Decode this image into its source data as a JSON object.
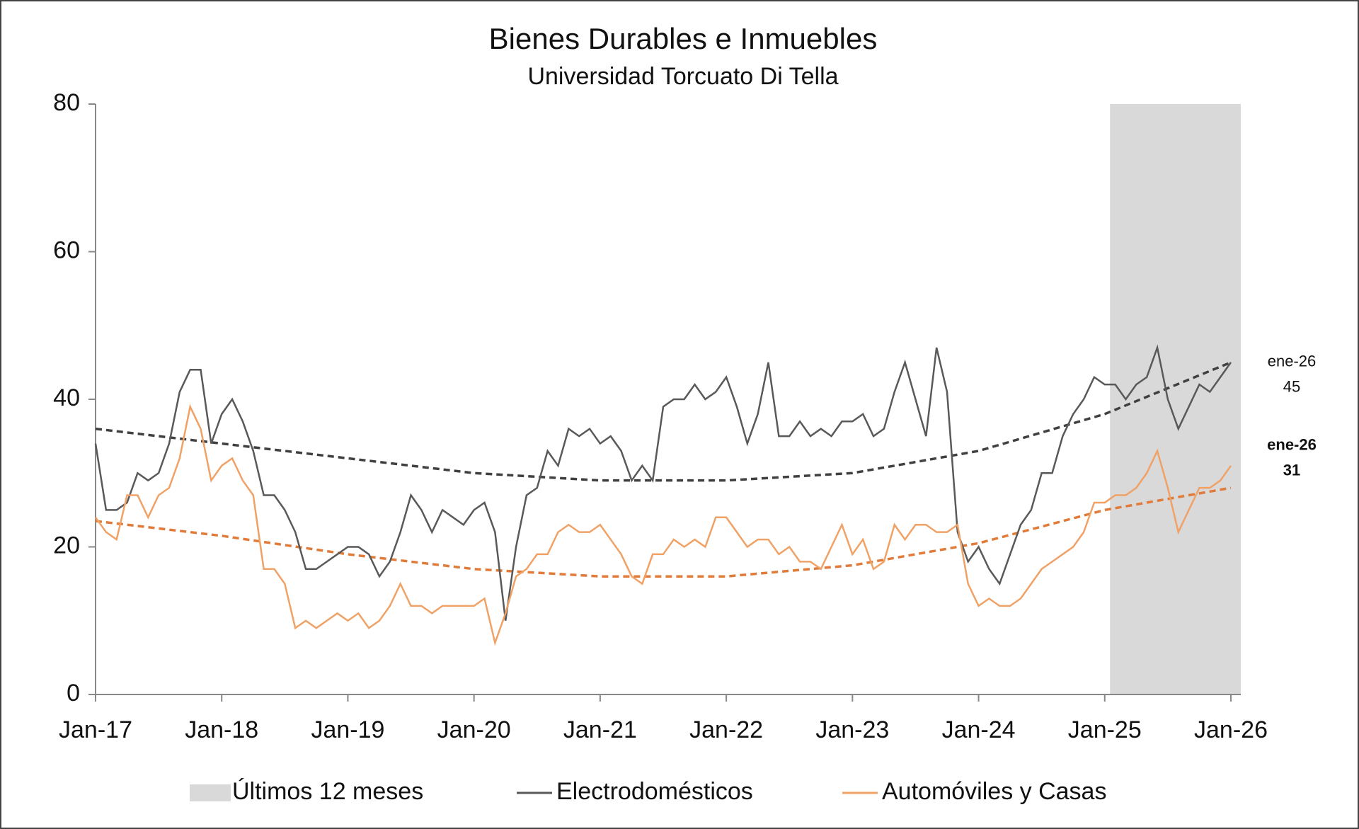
{
  "chart_data": {
    "type": "line",
    "title": "Bienes Durables e Inmuebles",
    "subtitle": "Universidad Torcuato Di Tella",
    "categories": [
      "Jan-17",
      null,
      null,
      null,
      null,
      null,
      null,
      null,
      null,
      null,
      null,
      null,
      "Jan-18",
      null,
      null,
      null,
      null,
      null,
      null,
      null,
      null,
      null,
      null,
      null,
      "Jan-19",
      null,
      null,
      null,
      null,
      null,
      null,
      null,
      null,
      null,
      null,
      null,
      "Jan-20",
      null,
      null,
      null,
      null,
      null,
      null,
      null,
      null,
      null,
      null,
      null,
      "Jan-21",
      null,
      null,
      null,
      null,
      null,
      null,
      null,
      null,
      null,
      null,
      null,
      "Jan-22",
      null,
      null,
      null,
      null,
      null,
      null,
      null,
      null,
      null,
      null,
      null,
      "Jan-23",
      null,
      null,
      null,
      null,
      null,
      null,
      null,
      null,
      null,
      null,
      null,
      "Jan-24",
      null,
      null,
      null,
      null,
      null,
      null,
      null,
      null,
      null,
      null,
      null,
      "Jan-25",
      null,
      null,
      null,
      null,
      null,
      null,
      null,
      null,
      null,
      null,
      null,
      "Jan-26"
    ],
    "series": [
      {
        "name": "Electrodomésticos",
        "color": "#595959",
        "end_label": "ene-26",
        "values": [
          34,
          25,
          25,
          26,
          30,
          29,
          30,
          34,
          41,
          44,
          44,
          34,
          38,
          40,
          37,
          33,
          27,
          27,
          25,
          22,
          17,
          17,
          18,
          19,
          20,
          20,
          19,
          16,
          18,
          22,
          27,
          25,
          22,
          25,
          24,
          23,
          25,
          26,
          22,
          10,
          20,
          27,
          28,
          33,
          31,
          36,
          35,
          36,
          34,
          35,
          33,
          29,
          31,
          29,
          39,
          40,
          40,
          42,
          40,
          41,
          43,
          39,
          34,
          38,
          45,
          35,
          35,
          37,
          35,
          36,
          35,
          37,
          37,
          38,
          35,
          36,
          41,
          45,
          40,
          35,
          47,
          41,
          22,
          18,
          20,
          17,
          15,
          19,
          23,
          25,
          30,
          30,
          35,
          38,
          40,
          43,
          42,
          42,
          40,
          42,
          43,
          47,
          40,
          36,
          39,
          42,
          41,
          43,
          45
        ],
        "trend": {
          "color": "#404040",
          "x": [
            "Jan-17",
            "Jan-18",
            "Jan-19",
            "Jan-20",
            "Jan-21",
            "Jan-22",
            "Jan-23",
            "Jan-24",
            "Jan-25",
            "Jan-26"
          ],
          "values": [
            36,
            34,
            32,
            30,
            29,
            29,
            30,
            33,
            38,
            45
          ]
        }
      },
      {
        "name": "Automóviles y Casas",
        "color": "#f0a266",
        "end_label": "ene-26",
        "values": [
          24,
          22,
          21,
          27,
          27,
          24,
          27,
          28,
          32,
          39,
          36,
          29,
          31,
          32,
          29,
          27,
          17,
          17,
          15,
          9,
          10,
          9,
          10,
          11,
          10,
          11,
          9,
          10,
          12,
          15,
          12,
          12,
          11,
          12,
          12,
          12,
          12,
          13,
          7,
          11,
          16,
          17,
          19,
          19,
          22,
          23,
          22,
          22,
          23,
          21,
          19,
          16,
          15,
          19,
          19,
          21,
          20,
          21,
          20,
          24,
          24,
          22,
          20,
          21,
          21,
          19,
          20,
          18,
          18,
          17,
          20,
          23,
          19,
          21,
          17,
          18,
          23,
          21,
          23,
          23,
          22,
          22,
          23,
          15,
          12,
          13,
          12,
          12,
          13,
          15,
          17,
          18,
          19,
          20,
          22,
          26,
          26,
          27,
          27,
          28,
          30,
          33,
          28,
          22,
          25,
          28,
          28,
          29,
          31
        ],
        "trend": {
          "color": "#e07b39",
          "x": [
            "Jan-17",
            "Jan-18",
            "Jan-19",
            "Jan-20",
            "Jan-21",
            "Jan-22",
            "Jan-23",
            "Jan-24",
            "Jan-25",
            "Jan-26"
          ],
          "values": [
            23.5,
            21.5,
            19,
            17,
            16,
            16,
            17.5,
            20.5,
            25,
            28
          ]
        }
      }
    ],
    "shaded": {
      "name": "Últimos 12 meses",
      "color": "#d9d9d9",
      "months": 12
    },
    "ylim": [
      0,
      80
    ],
    "yticks": [
      0,
      20,
      40,
      60,
      80
    ],
    "grid": false
  }
}
